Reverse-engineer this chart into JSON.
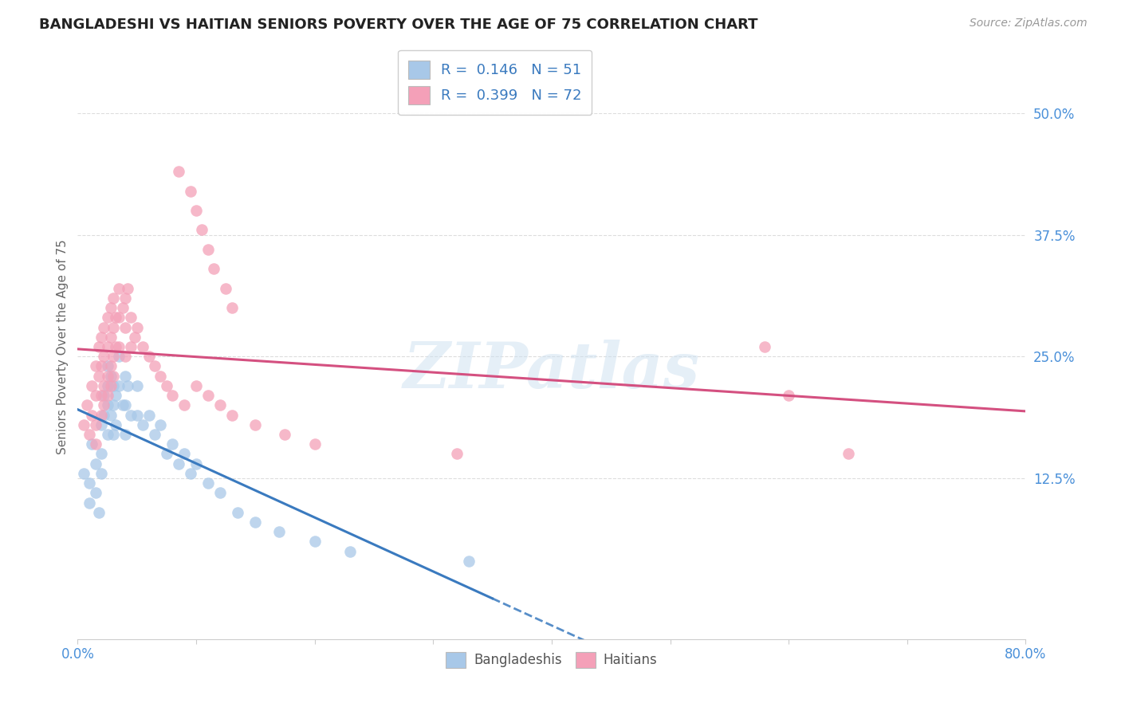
{
  "title": "BANGLADESHI VS HAITIAN SENIORS POVERTY OVER THE AGE OF 75 CORRELATION CHART",
  "source": "Source: ZipAtlas.com",
  "ylabel": "Seniors Poverty Over the Age of 75",
  "xlim": [
    0.0,
    0.8
  ],
  "ylim": [
    -0.04,
    0.56
  ],
  "ytick_positions": [
    0.125,
    0.25,
    0.375,
    0.5
  ],
  "ytick_labels": [
    "12.5%",
    "25.0%",
    "37.5%",
    "50.0%"
  ],
  "blue_color": "#a8c8e8",
  "pink_color": "#f4a0b8",
  "blue_line_color": "#3a7abf",
  "pink_line_color": "#d45080",
  "watermark": "ZIPatlas",
  "bangladeshi_points": [
    [
      0.005,
      0.13
    ],
    [
      0.01,
      0.12
    ],
    [
      0.01,
      0.1
    ],
    [
      0.012,
      0.16
    ],
    [
      0.015,
      0.14
    ],
    [
      0.015,
      0.11
    ],
    [
      0.018,
      0.09
    ],
    [
      0.02,
      0.18
    ],
    [
      0.02,
      0.15
    ],
    [
      0.02,
      0.13
    ],
    [
      0.022,
      0.21
    ],
    [
      0.022,
      0.19
    ],
    [
      0.025,
      0.24
    ],
    [
      0.025,
      0.22
    ],
    [
      0.025,
      0.2
    ],
    [
      0.025,
      0.17
    ],
    [
      0.028,
      0.23
    ],
    [
      0.028,
      0.19
    ],
    [
      0.03,
      0.22
    ],
    [
      0.03,
      0.2
    ],
    [
      0.03,
      0.17
    ],
    [
      0.032,
      0.21
    ],
    [
      0.032,
      0.18
    ],
    [
      0.035,
      0.25
    ],
    [
      0.035,
      0.22
    ],
    [
      0.038,
      0.2
    ],
    [
      0.04,
      0.23
    ],
    [
      0.04,
      0.2
    ],
    [
      0.04,
      0.17
    ],
    [
      0.042,
      0.22
    ],
    [
      0.045,
      0.19
    ],
    [
      0.05,
      0.22
    ],
    [
      0.05,
      0.19
    ],
    [
      0.055,
      0.18
    ],
    [
      0.06,
      0.19
    ],
    [
      0.065,
      0.17
    ],
    [
      0.07,
      0.18
    ],
    [
      0.075,
      0.15
    ],
    [
      0.08,
      0.16
    ],
    [
      0.085,
      0.14
    ],
    [
      0.09,
      0.15
    ],
    [
      0.095,
      0.13
    ],
    [
      0.1,
      0.14
    ],
    [
      0.11,
      0.12
    ],
    [
      0.12,
      0.11
    ],
    [
      0.135,
      0.09
    ],
    [
      0.15,
      0.08
    ],
    [
      0.17,
      0.07
    ],
    [
      0.2,
      0.06
    ],
    [
      0.23,
      0.05
    ],
    [
      0.33,
      0.04
    ]
  ],
  "haitian_points": [
    [
      0.005,
      0.18
    ],
    [
      0.008,
      0.2
    ],
    [
      0.01,
      0.17
    ],
    [
      0.012,
      0.22
    ],
    [
      0.012,
      0.19
    ],
    [
      0.015,
      0.24
    ],
    [
      0.015,
      0.21
    ],
    [
      0.015,
      0.18
    ],
    [
      0.015,
      0.16
    ],
    [
      0.018,
      0.26
    ],
    [
      0.018,
      0.23
    ],
    [
      0.02,
      0.27
    ],
    [
      0.02,
      0.24
    ],
    [
      0.02,
      0.21
    ],
    [
      0.02,
      0.19
    ],
    [
      0.022,
      0.28
    ],
    [
      0.022,
      0.25
    ],
    [
      0.022,
      0.22
    ],
    [
      0.022,
      0.2
    ],
    [
      0.025,
      0.29
    ],
    [
      0.025,
      0.26
    ],
    [
      0.025,
      0.23
    ],
    [
      0.025,
      0.21
    ],
    [
      0.028,
      0.3
    ],
    [
      0.028,
      0.27
    ],
    [
      0.028,
      0.24
    ],
    [
      0.028,
      0.22
    ],
    [
      0.03,
      0.31
    ],
    [
      0.03,
      0.28
    ],
    [
      0.03,
      0.25
    ],
    [
      0.03,
      0.23
    ],
    [
      0.032,
      0.29
    ],
    [
      0.032,
      0.26
    ],
    [
      0.035,
      0.32
    ],
    [
      0.035,
      0.29
    ],
    [
      0.035,
      0.26
    ],
    [
      0.038,
      0.3
    ],
    [
      0.04,
      0.31
    ],
    [
      0.04,
      0.28
    ],
    [
      0.04,
      0.25
    ],
    [
      0.042,
      0.32
    ],
    [
      0.045,
      0.29
    ],
    [
      0.045,
      0.26
    ],
    [
      0.048,
      0.27
    ],
    [
      0.05,
      0.28
    ],
    [
      0.055,
      0.26
    ],
    [
      0.06,
      0.25
    ],
    [
      0.065,
      0.24
    ],
    [
      0.07,
      0.23
    ],
    [
      0.075,
      0.22
    ],
    [
      0.08,
      0.21
    ],
    [
      0.09,
      0.2
    ],
    [
      0.1,
      0.22
    ],
    [
      0.11,
      0.21
    ],
    [
      0.12,
      0.2
    ],
    [
      0.13,
      0.19
    ],
    [
      0.15,
      0.18
    ],
    [
      0.175,
      0.17
    ],
    [
      0.2,
      0.16
    ],
    [
      0.085,
      0.44
    ],
    [
      0.095,
      0.42
    ],
    [
      0.1,
      0.4
    ],
    [
      0.105,
      0.38
    ],
    [
      0.11,
      0.36
    ],
    [
      0.115,
      0.34
    ],
    [
      0.125,
      0.32
    ],
    [
      0.13,
      0.3
    ],
    [
      0.32,
      0.15
    ],
    [
      0.58,
      0.26
    ],
    [
      0.6,
      0.21
    ],
    [
      0.65,
      0.15
    ]
  ],
  "bg_color": "#ffffff",
  "grid_color": "#dddddd",
  "title_color": "#222222",
  "axis_label_color": "#666666",
  "tick_label_color": "#4a90d9"
}
